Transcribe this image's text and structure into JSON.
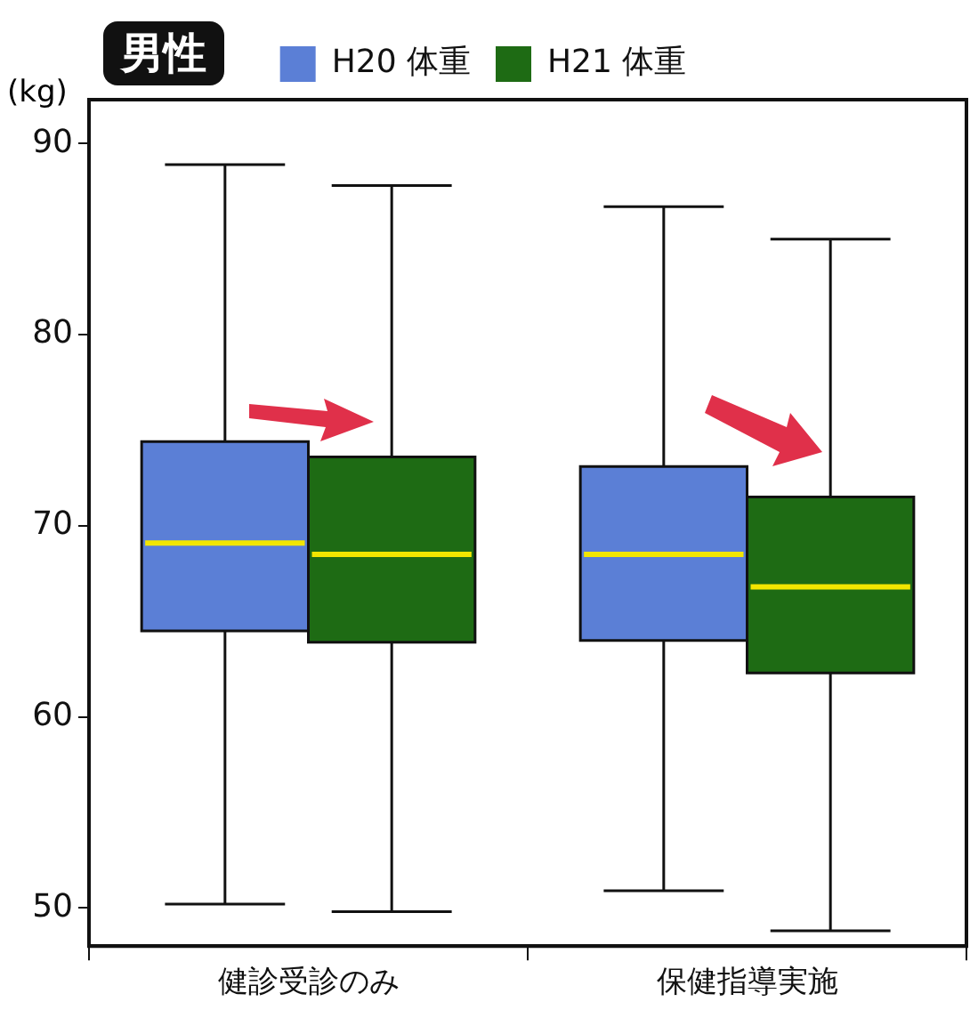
{
  "chart_data": {
    "type": "box",
    "title": "男性",
    "ylabel": "(kg)",
    "categories": [
      "健診受診のみ",
      "保健指導実施"
    ],
    "series": [
      {
        "name": "H20 体重",
        "color": "#5b7fd6",
        "boxes": [
          {
            "low": 50.2,
            "q1": 64.5,
            "median": 69.1,
            "q3": 74.4,
            "high": 88.9
          },
          {
            "low": 50.9,
            "q1": 64.0,
            "median": 68.5,
            "q3": 73.1,
            "high": 86.7
          }
        ]
      },
      {
        "name": "H21 体重",
        "color": "#1e6b14",
        "boxes": [
          {
            "low": 49.8,
            "q1": 63.9,
            "median": 68.5,
            "q3": 73.6,
            "high": 87.8
          },
          {
            "low": 48.8,
            "q1": 62.3,
            "median": 66.8,
            "q3": 71.5,
            "high": 85.0
          }
        ]
      }
    ],
    "ylim": [
      48,
      92.3
    ],
    "yticks": [
      50,
      60,
      70,
      80,
      90
    ],
    "grid": false,
    "legend": "top"
  }
}
